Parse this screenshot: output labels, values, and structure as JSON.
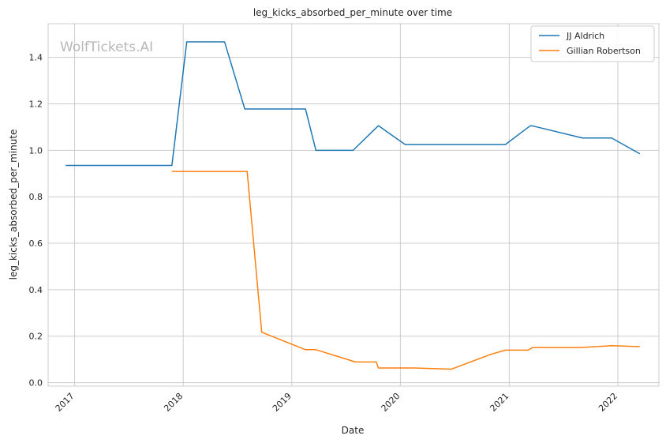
{
  "chart_data": {
    "type": "line",
    "title": "leg_kicks_absorbed_per_minute over time",
    "xlabel": "Date",
    "ylabel": "leg_kicks_absorbed_per_minute",
    "watermark": "WolfTickets.AI",
    "legend_position": "top-right",
    "grid": true,
    "xlim": [
      "2016-10-04",
      "2022-05-19"
    ],
    "ylim": [
      -0.015,
      1.545
    ],
    "x_ticks": [
      {
        "label": "2017",
        "date": "2017-01-01"
      },
      {
        "label": "2018",
        "date": "2018-01-01"
      },
      {
        "label": "2019",
        "date": "2019-01-01"
      },
      {
        "label": "2020",
        "date": "2020-01-01"
      },
      {
        "label": "2021",
        "date": "2021-01-01"
      },
      {
        "label": "2022",
        "date": "2022-01-01"
      }
    ],
    "y_ticks": [
      {
        "label": "0.0",
        "value": 0.0
      },
      {
        "label": "0.2",
        "value": 0.2
      },
      {
        "label": "0.4",
        "value": 0.4
      },
      {
        "label": "0.6",
        "value": 0.6
      },
      {
        "label": "0.8",
        "value": 0.8
      },
      {
        "label": "1.0",
        "value": 1.0
      },
      {
        "label": "1.2",
        "value": 1.2
      },
      {
        "label": "1.4",
        "value": 1.4
      }
    ],
    "series": [
      {
        "name": "JJ Aldrich",
        "color": "#1f77b4",
        "points": [
          [
            "2016-12-02",
            0.935
          ],
          [
            "2017-11-24",
            0.935
          ],
          [
            "2018-01-13",
            1.467
          ],
          [
            "2018-05-20",
            1.467
          ],
          [
            "2018-07-27",
            1.178
          ],
          [
            "2019-02-16",
            1.178
          ],
          [
            "2019-03-23",
            1.0
          ],
          [
            "2019-07-26",
            1.0
          ],
          [
            "2019-10-19",
            1.106
          ],
          [
            "2020-01-17",
            1.025
          ],
          [
            "2020-12-19",
            1.025
          ],
          [
            "2021-03-13",
            1.106
          ],
          [
            "2021-03-27",
            1.103
          ],
          [
            "2021-09-04",
            1.053
          ],
          [
            "2021-12-11",
            1.053
          ],
          [
            "2022-03-16",
            0.985
          ]
        ]
      },
      {
        "name": "Gillian Robertson",
        "color": "#ff7f0e",
        "points": [
          [
            "2017-11-24",
            0.909
          ],
          [
            "2018-08-04",
            0.909
          ],
          [
            "2018-09-22",
            0.217
          ],
          [
            "2019-02-16",
            0.142
          ],
          [
            "2019-03-23",
            0.142
          ],
          [
            "2019-08-03",
            0.089
          ],
          [
            "2019-10-12",
            0.089
          ],
          [
            "2019-10-19",
            0.063
          ],
          [
            "2020-02-15",
            0.063
          ],
          [
            "2020-06-20",
            0.058
          ],
          [
            "2020-10-31",
            0.122
          ],
          [
            "2020-12-19",
            0.14
          ],
          [
            "2021-03-06",
            0.14
          ],
          [
            "2021-03-20",
            0.151
          ],
          [
            "2021-08-28",
            0.151
          ],
          [
            "2021-12-11",
            0.159
          ],
          [
            "2022-03-16",
            0.155
          ]
        ]
      }
    ]
  }
}
